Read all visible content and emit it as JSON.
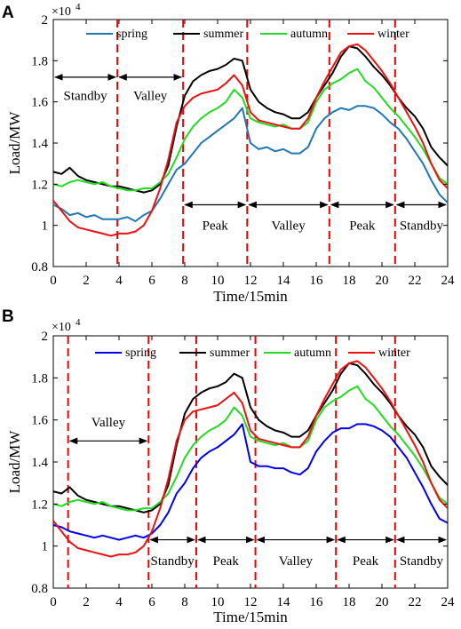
{
  "chart_data": [
    {
      "panel": "A",
      "type": "line",
      "xlabel": "Time/15min",
      "ylabel": "Load/MW",
      "y_multiplier": "×10",
      "y_exponent": "4",
      "xlim": [
        0,
        24
      ],
      "ylim": [
        0.8,
        2.0
      ],
      "xticks": [
        0,
        2,
        4,
        6,
        8,
        10,
        12,
        14,
        16,
        18,
        20,
        22,
        24
      ],
      "yticks": [
        "0.8",
        "1",
        "1.2",
        "1.4",
        "1.6",
        "1.8",
        "2"
      ],
      "grid": false,
      "legend_placement": "top",
      "legend_labels": [
        "spring",
        "summer",
        "autumn",
        "winter"
      ],
      "series": [
        {
          "name": "spring",
          "color": "#1f77b4",
          "x": [
            0,
            0.5,
            1,
            1.5,
            2,
            2.5,
            3,
            3.5,
            4,
            4.5,
            5,
            5.5,
            6,
            6.5,
            7,
            7.5,
            8,
            8.5,
            9,
            9.5,
            10,
            10.5,
            11,
            11.5,
            12,
            12.5,
            13,
            13.5,
            14,
            14.5,
            15,
            15.5,
            16,
            16.5,
            17,
            17.5,
            18,
            18.5,
            19,
            19.5,
            20,
            20.5,
            21,
            21.5,
            22,
            22.5,
            23,
            23.5,
            24
          ],
          "y": [
            1.1,
            1.08,
            1.05,
            1.06,
            1.04,
            1.05,
            1.03,
            1.03,
            1.03,
            1.04,
            1.02,
            1.05,
            1.07,
            1.13,
            1.2,
            1.27,
            1.3,
            1.35,
            1.4,
            1.43,
            1.46,
            1.49,
            1.52,
            1.57,
            1.4,
            1.37,
            1.38,
            1.36,
            1.37,
            1.35,
            1.35,
            1.38,
            1.47,
            1.52,
            1.55,
            1.57,
            1.56,
            1.58,
            1.58,
            1.57,
            1.54,
            1.5,
            1.47,
            1.42,
            1.36,
            1.3,
            1.22,
            1.15,
            1.11
          ]
        },
        {
          "name": "summer",
          "color": "#000000",
          "x": [
            0,
            0.5,
            1,
            1.5,
            2,
            2.5,
            3,
            3.5,
            4,
            4.5,
            5,
            5.5,
            6,
            6.5,
            7,
            7.5,
            8,
            8.5,
            9,
            9.5,
            10,
            10.5,
            11,
            11.5,
            12,
            12.5,
            13,
            13.5,
            14,
            14.5,
            15,
            15.5,
            16,
            16.5,
            17,
            17.5,
            18,
            18.5,
            19,
            19.5,
            20,
            20.5,
            21,
            21.5,
            22,
            22.5,
            23,
            23.5,
            24
          ],
          "y": [
            1.26,
            1.25,
            1.28,
            1.24,
            1.22,
            1.21,
            1.2,
            1.19,
            1.19,
            1.18,
            1.17,
            1.16,
            1.17,
            1.2,
            1.29,
            1.48,
            1.63,
            1.7,
            1.73,
            1.75,
            1.76,
            1.78,
            1.81,
            1.8,
            1.66,
            1.6,
            1.57,
            1.55,
            1.54,
            1.52,
            1.52,
            1.55,
            1.62,
            1.68,
            1.74,
            1.82,
            1.87,
            1.86,
            1.82,
            1.77,
            1.73,
            1.68,
            1.62,
            1.57,
            1.53,
            1.47,
            1.38,
            1.33,
            1.29
          ]
        },
        {
          "name": "autumn",
          "color": "#22dd22",
          "x": [
            0,
            0.5,
            1,
            1.5,
            2,
            2.5,
            3,
            3.5,
            4,
            4.5,
            5,
            5.5,
            6,
            6.5,
            7,
            7.5,
            8,
            8.5,
            9,
            9.5,
            10,
            10.5,
            11,
            11.5,
            12,
            12.5,
            13,
            13.5,
            14,
            14.5,
            15,
            15.5,
            16,
            16.5,
            17,
            17.5,
            18,
            18.5,
            19,
            19.5,
            20,
            20.5,
            21,
            21.5,
            22,
            22.5,
            23,
            23.5,
            24
          ],
          "y": [
            1.2,
            1.19,
            1.21,
            1.22,
            1.21,
            1.2,
            1.21,
            1.19,
            1.18,
            1.17,
            1.17,
            1.18,
            1.18,
            1.21,
            1.25,
            1.33,
            1.42,
            1.48,
            1.52,
            1.55,
            1.57,
            1.6,
            1.66,
            1.62,
            1.52,
            1.5,
            1.49,
            1.48,
            1.49,
            1.47,
            1.47,
            1.5,
            1.6,
            1.66,
            1.69,
            1.71,
            1.74,
            1.76,
            1.7,
            1.67,
            1.62,
            1.57,
            1.53,
            1.48,
            1.43,
            1.37,
            1.3,
            1.23,
            1.2
          ]
        },
        {
          "name": "winter",
          "color": "#ee1111",
          "x": [
            0,
            0.5,
            1,
            1.5,
            2,
            2.5,
            3,
            3.5,
            4,
            4.5,
            5,
            5.5,
            6,
            6.5,
            7,
            7.5,
            8,
            8.5,
            9,
            9.5,
            10,
            10.5,
            11,
            11.5,
            12,
            12.5,
            13,
            13.5,
            14,
            14.5,
            15,
            15.5,
            16,
            16.5,
            17,
            17.5,
            18,
            18.5,
            19,
            19.5,
            20,
            20.5,
            21,
            21.5,
            22,
            22.5,
            23,
            23.5,
            24
          ],
          "y": [
            1.12,
            1.07,
            1.02,
            0.99,
            0.98,
            0.97,
            0.96,
            0.95,
            0.96,
            0.96,
            0.97,
            1.0,
            1.07,
            1.18,
            1.32,
            1.5,
            1.58,
            1.62,
            1.64,
            1.65,
            1.66,
            1.69,
            1.73,
            1.68,
            1.55,
            1.51,
            1.5,
            1.49,
            1.48,
            1.47,
            1.47,
            1.52,
            1.62,
            1.7,
            1.77,
            1.84,
            1.87,
            1.88,
            1.85,
            1.8,
            1.75,
            1.69,
            1.62,
            1.55,
            1.48,
            1.4,
            1.3,
            1.22,
            1.18
          ]
        }
      ],
      "divider_x": [
        3.9,
        7.9,
        11.8,
        16.8,
        20.8
      ],
      "phases": [
        {
          "label": "Standby",
          "x_start": 0,
          "x_end": 3.9,
          "y_arrow": 1.72,
          "y_label": 1.63
        },
        {
          "label": "Valley",
          "x_start": 3.9,
          "x_end": 7.9,
          "y_arrow": 1.72,
          "y_label": 1.63
        },
        {
          "label": "Peak",
          "x_start": 7.9,
          "x_end": 11.8,
          "y_arrow": 1.1,
          "y_label": 1.0
        },
        {
          "label": "Valley",
          "x_start": 11.8,
          "x_end": 16.8,
          "y_arrow": 1.1,
          "y_label": 1.0
        },
        {
          "label": "Peak",
          "x_start": 16.8,
          "x_end": 20.8,
          "y_arrow": 1.1,
          "y_label": 1.0
        },
        {
          "label": "Standby",
          "x_start": 20.8,
          "x_end": 24,
          "y_arrow": 1.1,
          "y_label": 1.0
        }
      ]
    },
    {
      "panel": "B",
      "type": "line",
      "xlabel": "Time/15min",
      "ylabel": "Load/MW",
      "y_multiplier": "×10",
      "y_exponent": "4",
      "xlim": [
        0,
        24
      ],
      "ylim": [
        0.8,
        2.0
      ],
      "xticks": [
        0,
        2,
        4,
        6,
        8,
        10,
        12,
        14,
        16,
        18,
        20,
        22,
        24
      ],
      "yticks": [
        "0.8",
        "1",
        "1.2",
        "1.4",
        "1.6",
        "1.8",
        "2"
      ],
      "grid": false,
      "legend_placement": "top",
      "legend_labels": [
        "spring",
        "summer",
        "autumn",
        "winter"
      ],
      "series": [
        {
          "name": "spring",
          "color": "#0000ee",
          "x": [
            0,
            0.5,
            1,
            1.5,
            2,
            2.5,
            3,
            3.5,
            4,
            4.5,
            5,
            5.5,
            6,
            6.5,
            7,
            7.5,
            8,
            8.5,
            9,
            9.5,
            10,
            10.5,
            11,
            11.5,
            12,
            12.5,
            13,
            13.5,
            14,
            14.5,
            15,
            15.5,
            16,
            16.5,
            17,
            17.5,
            18,
            18.5,
            19,
            19.5,
            20,
            20.5,
            21,
            21.5,
            22,
            22.5,
            23,
            23.5,
            24
          ],
          "y": [
            1.1,
            1.09,
            1.07,
            1.06,
            1.05,
            1.04,
            1.05,
            1.04,
            1.03,
            1.04,
            1.05,
            1.04,
            1.06,
            1.1,
            1.16,
            1.25,
            1.3,
            1.37,
            1.42,
            1.45,
            1.47,
            1.5,
            1.53,
            1.58,
            1.4,
            1.38,
            1.38,
            1.37,
            1.37,
            1.35,
            1.34,
            1.37,
            1.45,
            1.5,
            1.54,
            1.56,
            1.56,
            1.58,
            1.58,
            1.57,
            1.55,
            1.52,
            1.47,
            1.42,
            1.35,
            1.28,
            1.2,
            1.13,
            1.11
          ]
        },
        {
          "name": "summer",
          "color": "#000000",
          "x": [
            0,
            0.5,
            1,
            1.5,
            2,
            2.5,
            3,
            3.5,
            4,
            4.5,
            5,
            5.5,
            6,
            6.5,
            7,
            7.5,
            8,
            8.5,
            9,
            9.5,
            10,
            10.5,
            11,
            11.5,
            12,
            12.5,
            13,
            13.5,
            14,
            14.5,
            15,
            15.5,
            16,
            16.5,
            17,
            17.5,
            18,
            18.5,
            19,
            19.5,
            20,
            20.5,
            21,
            21.5,
            22,
            22.5,
            23,
            23.5,
            24
          ],
          "y": [
            1.26,
            1.25,
            1.28,
            1.24,
            1.22,
            1.21,
            1.2,
            1.19,
            1.19,
            1.18,
            1.17,
            1.16,
            1.17,
            1.2,
            1.29,
            1.48,
            1.63,
            1.7,
            1.73,
            1.75,
            1.76,
            1.78,
            1.82,
            1.8,
            1.66,
            1.6,
            1.57,
            1.55,
            1.54,
            1.52,
            1.52,
            1.55,
            1.62,
            1.68,
            1.74,
            1.82,
            1.87,
            1.86,
            1.82,
            1.77,
            1.73,
            1.68,
            1.62,
            1.57,
            1.53,
            1.47,
            1.38,
            1.33,
            1.29
          ]
        },
        {
          "name": "autumn",
          "color": "#22dd22",
          "x": [
            0,
            0.5,
            1,
            1.5,
            2,
            2.5,
            3,
            3.5,
            4,
            4.5,
            5,
            5.5,
            6,
            6.5,
            7,
            7.5,
            8,
            8.5,
            9,
            9.5,
            10,
            10.5,
            11,
            11.5,
            12,
            12.5,
            13,
            13.5,
            14,
            14.5,
            15,
            15.5,
            16,
            16.5,
            17,
            17.5,
            18,
            18.5,
            19,
            19.5,
            20,
            20.5,
            21,
            21.5,
            22,
            22.5,
            23,
            23.5,
            24
          ],
          "y": [
            1.2,
            1.19,
            1.21,
            1.22,
            1.21,
            1.2,
            1.21,
            1.19,
            1.18,
            1.17,
            1.17,
            1.18,
            1.18,
            1.21,
            1.25,
            1.33,
            1.42,
            1.48,
            1.52,
            1.55,
            1.57,
            1.6,
            1.66,
            1.62,
            1.52,
            1.5,
            1.49,
            1.48,
            1.49,
            1.47,
            1.47,
            1.5,
            1.6,
            1.66,
            1.69,
            1.71,
            1.74,
            1.76,
            1.7,
            1.67,
            1.62,
            1.57,
            1.53,
            1.48,
            1.43,
            1.37,
            1.3,
            1.23,
            1.2
          ]
        },
        {
          "name": "winter",
          "color": "#ee1111",
          "x": [
            0,
            0.5,
            1,
            1.5,
            2,
            2.5,
            3,
            3.5,
            4,
            4.5,
            5,
            5.5,
            6,
            6.5,
            7,
            7.5,
            8,
            8.5,
            9,
            9.5,
            10,
            10.5,
            11,
            11.5,
            12,
            12.5,
            13,
            13.5,
            14,
            14.5,
            15,
            15.5,
            16,
            16.5,
            17,
            17.5,
            18,
            18.5,
            19,
            19.5,
            20,
            20.5,
            21,
            21.5,
            22,
            22.5,
            23,
            23.5,
            24
          ],
          "y": [
            1.12,
            1.07,
            1.02,
            0.99,
            0.98,
            0.97,
            0.96,
            0.95,
            0.96,
            0.96,
            0.97,
            1.0,
            1.07,
            1.18,
            1.32,
            1.5,
            1.6,
            1.64,
            1.65,
            1.66,
            1.67,
            1.7,
            1.73,
            1.68,
            1.55,
            1.51,
            1.5,
            1.49,
            1.48,
            1.47,
            1.47,
            1.52,
            1.62,
            1.7,
            1.77,
            1.84,
            1.87,
            1.88,
            1.85,
            1.8,
            1.75,
            1.69,
            1.62,
            1.55,
            1.48,
            1.4,
            1.3,
            1.22,
            1.18
          ]
        }
      ],
      "divider_x": [
        0.9,
        5.8,
        8.7,
        12.3,
        17.2,
        20.8
      ],
      "phases": [
        {
          "label": "Valley",
          "x_start": 0.9,
          "x_end": 5.8,
          "y_arrow": 1.5,
          "y_label": 1.59
        },
        {
          "label": "Standby",
          "x_start": 5.8,
          "x_end": 8.7,
          "y_arrow": 1.03,
          "y_label": 0.93
        },
        {
          "label": "Peak",
          "x_start": 8.7,
          "x_end": 12.3,
          "y_arrow": 1.03,
          "y_label": 0.93
        },
        {
          "label": "Valley",
          "x_start": 12.3,
          "x_end": 17.2,
          "y_arrow": 1.03,
          "y_label": 0.93
        },
        {
          "label": "Peak",
          "x_start": 17.2,
          "x_end": 20.8,
          "y_arrow": 1.03,
          "y_label": 0.93
        },
        {
          "label": "Standby",
          "x_start": 20.8,
          "x_end": 24,
          "y_arrow": 1.03,
          "y_label": 0.93
        }
      ]
    }
  ]
}
